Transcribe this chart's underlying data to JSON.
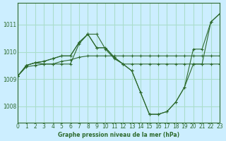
{
  "background_color": "#cceeff",
  "grid_color": "#aaddcc",
  "line_color": "#2d6a2d",
  "marker_color": "#2d6a2d",
  "title": "Graphe pression niveau de la mer (hPa)",
  "xlim": [
    0,
    23
  ],
  "ylim": [
    1007.4,
    1011.8
  ],
  "yticks": [
    1008,
    1009,
    1010,
    1011
  ],
  "xticks": [
    0,
    1,
    2,
    3,
    4,
    5,
    6,
    7,
    8,
    9,
    10,
    11,
    12,
    13,
    14,
    15,
    16,
    17,
    18,
    19,
    20,
    21,
    22,
    23
  ],
  "series": [
    [
      1009.1,
      1009.5,
      1009.6,
      1009.55,
      1009.55,
      1009.55,
      1009.55,
      1010.3,
      1010.65,
      1010.65,
      1010.1,
      1009.75,
      1009.55,
      1009.55,
      1009.55,
      1009.55,
      1009.55,
      1009.55,
      1009.55,
      1009.55,
      1009.55,
      1009.55,
      1009.55,
      1009.55
    ],
    [
      1009.1,
      1009.5,
      1009.6,
      1009.65,
      1009.75,
      1009.85,
      1009.85,
      1010.35,
      1010.65,
      1010.15,
      1010.15,
      1009.8,
      1009.55,
      1009.3,
      1008.5,
      1007.7,
      1007.7,
      1007.8,
      1008.15,
      1008.7,
      1009.55,
      1009.55,
      1011.1,
      1011.4
    ],
    [
      1009.1,
      1009.5,
      1009.6,
      1009.65,
      1009.75,
      1009.85,
      1009.85,
      1010.35,
      1010.65,
      1010.15,
      1010.15,
      1009.8,
      1009.55,
      1009.3,
      1008.5,
      1007.7,
      1007.7,
      1007.8,
      1008.15,
      1008.7,
      1010.1,
      1010.1,
      1011.1,
      1011.4
    ],
    [
      1009.1,
      1009.45,
      1009.5,
      1009.55,
      1009.55,
      1009.65,
      1009.7,
      1009.8,
      1009.85,
      1009.85,
      1009.85,
      1009.85,
      1009.85,
      1009.85,
      1009.85,
      1009.85,
      1009.85,
      1009.85,
      1009.85,
      1009.85,
      1009.85,
      1009.85,
      1009.85,
      1009.85
    ]
  ]
}
